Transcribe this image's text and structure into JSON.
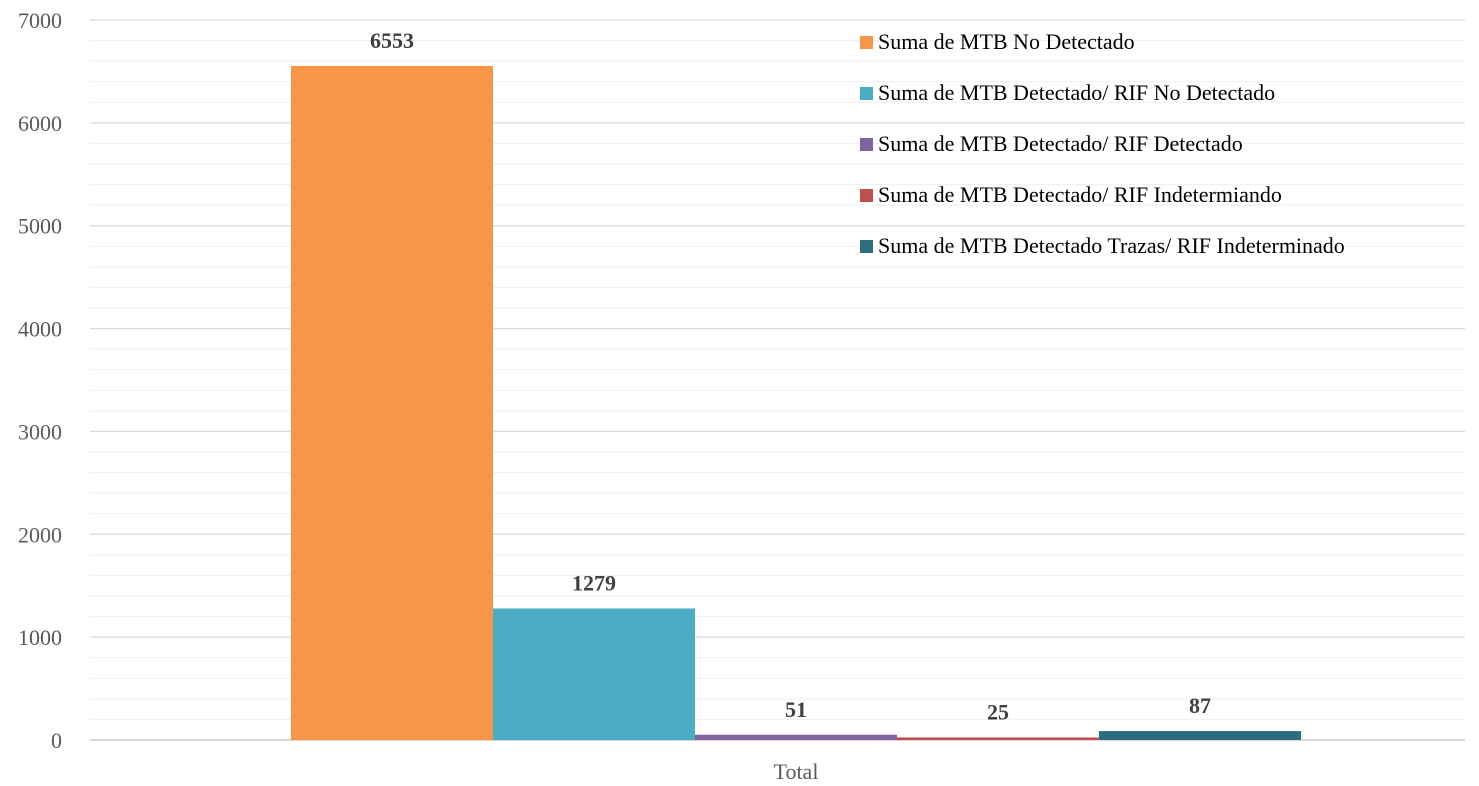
{
  "chart_data": {
    "type": "bar",
    "categories": [
      "Total"
    ],
    "series": [
      {
        "name": "Suma de MTB No Detectado",
        "values": [
          6553
        ],
        "color": "#F79646"
      },
      {
        "name": "Suma de MTB Detectado/ RIF No Detectado",
        "values": [
          1279
        ],
        "color": "#4BACC6"
      },
      {
        "name": "Suma de MTB Detectado/ RIF Detectado",
        "values": [
          51
        ],
        "color": "#8064A2"
      },
      {
        "name": "Suma de MTB Detectado/ RIF Indetermiando",
        "values": [
          25
        ],
        "color": "#C0504D"
      },
      {
        "name": "Suma de MTB Detectado Trazas/ RIF Indeterminado",
        "values": [
          87
        ],
        "color": "#2C6E7F"
      }
    ],
    "y_ticks": [
      "0",
      "1000",
      "2000",
      "3000",
      "4000",
      "5000",
      "6000",
      "7000"
    ],
    "ylim": [
      0,
      7000
    ],
    "minor_grid_step": 200,
    "grid": true,
    "legend_position": "top-right",
    "xlabel": "",
    "ylabel": "",
    "title": ""
  }
}
